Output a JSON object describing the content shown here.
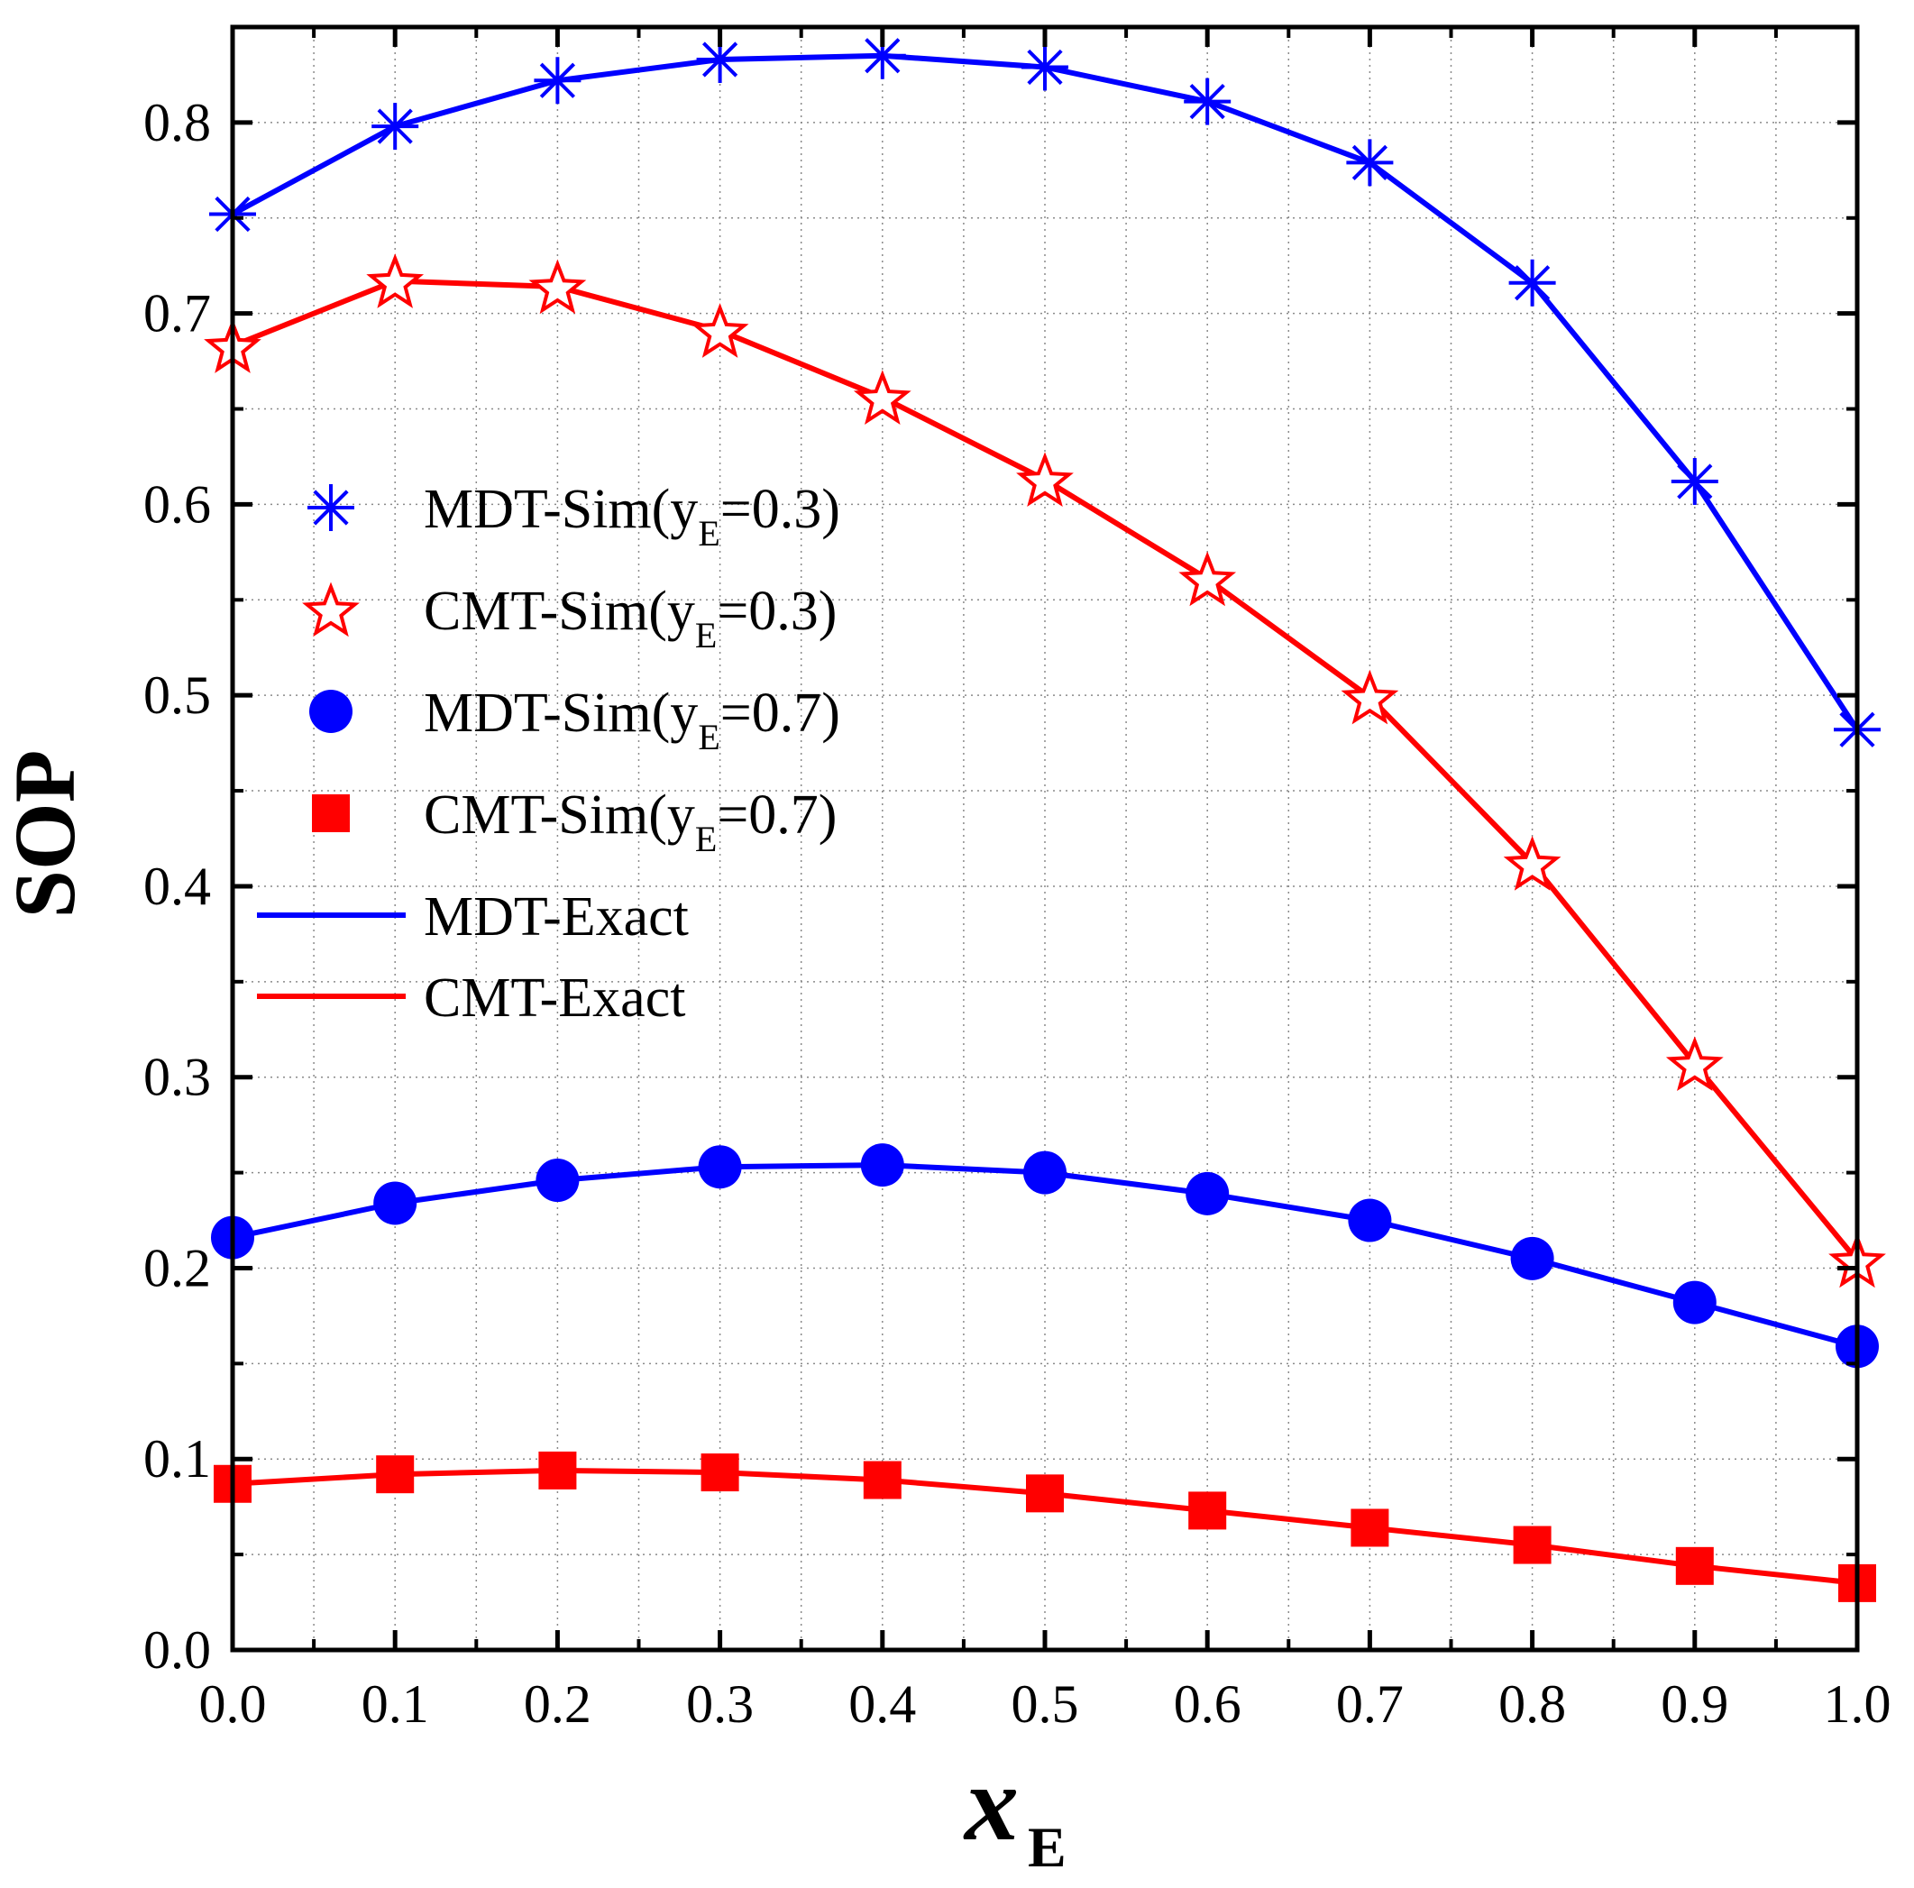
{
  "chart_data": {
    "type": "line",
    "title": "",
    "xlabel": "x",
    "xlabel_sub": "E",
    "ylabel": "SOP",
    "xlim": [
      0,
      1
    ],
    "ylim": [
      0,
      0.85
    ],
    "x_ticks": [
      "0.0",
      "0.1",
      "0.2",
      "0.3",
      "0.4",
      "0.5",
      "0.6",
      "0.7",
      "0.8",
      "0.9",
      "1.0"
    ],
    "y_ticks": [
      "0.0",
      "0.1",
      "0.2",
      "0.3",
      "0.4",
      "0.5",
      "0.6",
      "0.7",
      "0.8"
    ],
    "grid": true,
    "legend_position": "left-middle",
    "x": [
      0,
      0.1,
      0.2,
      0.3,
      0.4,
      0.5,
      0.6,
      0.7,
      0.8,
      0.9,
      1.0
    ],
    "series": [
      {
        "name": "MDT-Exact (y=0.3)",
        "kind": "line",
        "color": "#0000ff",
        "values": [
          0.752,
          0.798,
          0.822,
          0.833,
          0.835,
          0.829,
          0.811,
          0.779,
          0.716,
          0.612,
          0.482
        ]
      },
      {
        "name": "MDT-Sim(y=0.3)",
        "kind": "marker",
        "marker": "asterisk",
        "color": "#0000ff",
        "values": [
          0.752,
          0.798,
          0.822,
          0.833,
          0.835,
          0.829,
          0.811,
          0.779,
          0.716,
          0.612,
          0.482
        ]
      },
      {
        "name": "CMT-Exact (y=0.3)",
        "kind": "line",
        "color": "#ff0000",
        "values": [
          0.683,
          0.717,
          0.714,
          0.691,
          0.656,
          0.613,
          0.561,
          0.499,
          0.412,
          0.307,
          0.204
        ]
      },
      {
        "name": "CMT-Sim(y=0.3)",
        "kind": "marker",
        "marker": "star",
        "color": "#ff0000",
        "values": [
          0.683,
          0.717,
          0.714,
          0.691,
          0.656,
          0.613,
          0.561,
          0.499,
          0.412,
          0.307,
          0.204
        ]
      },
      {
        "name": "MDT-Exact (y=0.7)",
        "kind": "line",
        "color": "#0000ff",
        "values": [
          0.216,
          0.234,
          0.246,
          0.253,
          0.254,
          0.25,
          0.239,
          0.225,
          0.205,
          0.182,
          0.159
        ]
      },
      {
        "name": "MDT-Sim(y=0.7)",
        "kind": "marker",
        "marker": "circle",
        "color": "#0000ff",
        "values": [
          0.216,
          0.234,
          0.246,
          0.253,
          0.254,
          0.25,
          0.239,
          0.225,
          0.205,
          0.182,
          0.159
        ]
      },
      {
        "name": "CMT-Exact (y=0.7)",
        "kind": "line",
        "color": "#ff0000",
        "values": [
          0.087,
          0.092,
          0.094,
          0.093,
          0.089,
          0.082,
          0.073,
          0.064,
          0.055,
          0.044,
          0.035
        ]
      },
      {
        "name": "CMT-Sim(y=0.7)",
        "kind": "marker",
        "marker": "square",
        "color": "#ff0000",
        "values": [
          0.087,
          0.092,
          0.094,
          0.093,
          0.089,
          0.082,
          0.073,
          0.064,
          0.055,
          0.044,
          0.035
        ]
      }
    ],
    "legend": [
      {
        "label": "MDT-Sim(y",
        "sub": "E",
        "suffix": "=0.3)",
        "marker": "asterisk",
        "color": "#0000ff"
      },
      {
        "label": "CMT-Sim(y",
        "sub": "E",
        "suffix": "=0.3)",
        "marker": "star",
        "color": "#ff0000"
      },
      {
        "label": "MDT-Sim(y",
        "sub": "E",
        "suffix": "=0.7)",
        "marker": "circle",
        "color": "#0000ff"
      },
      {
        "label": "CMT-Sim(y",
        "sub": "E",
        "suffix": "=0.7)",
        "marker": "square",
        "color": "#ff0000"
      },
      {
        "label": "MDT-Exact",
        "sub": "",
        "suffix": "",
        "marker": "line",
        "color": "#0000ff"
      },
      {
        "label": "CMT-Exact",
        "sub": "",
        "suffix": "",
        "marker": "line",
        "color": "#ff0000"
      }
    ]
  }
}
